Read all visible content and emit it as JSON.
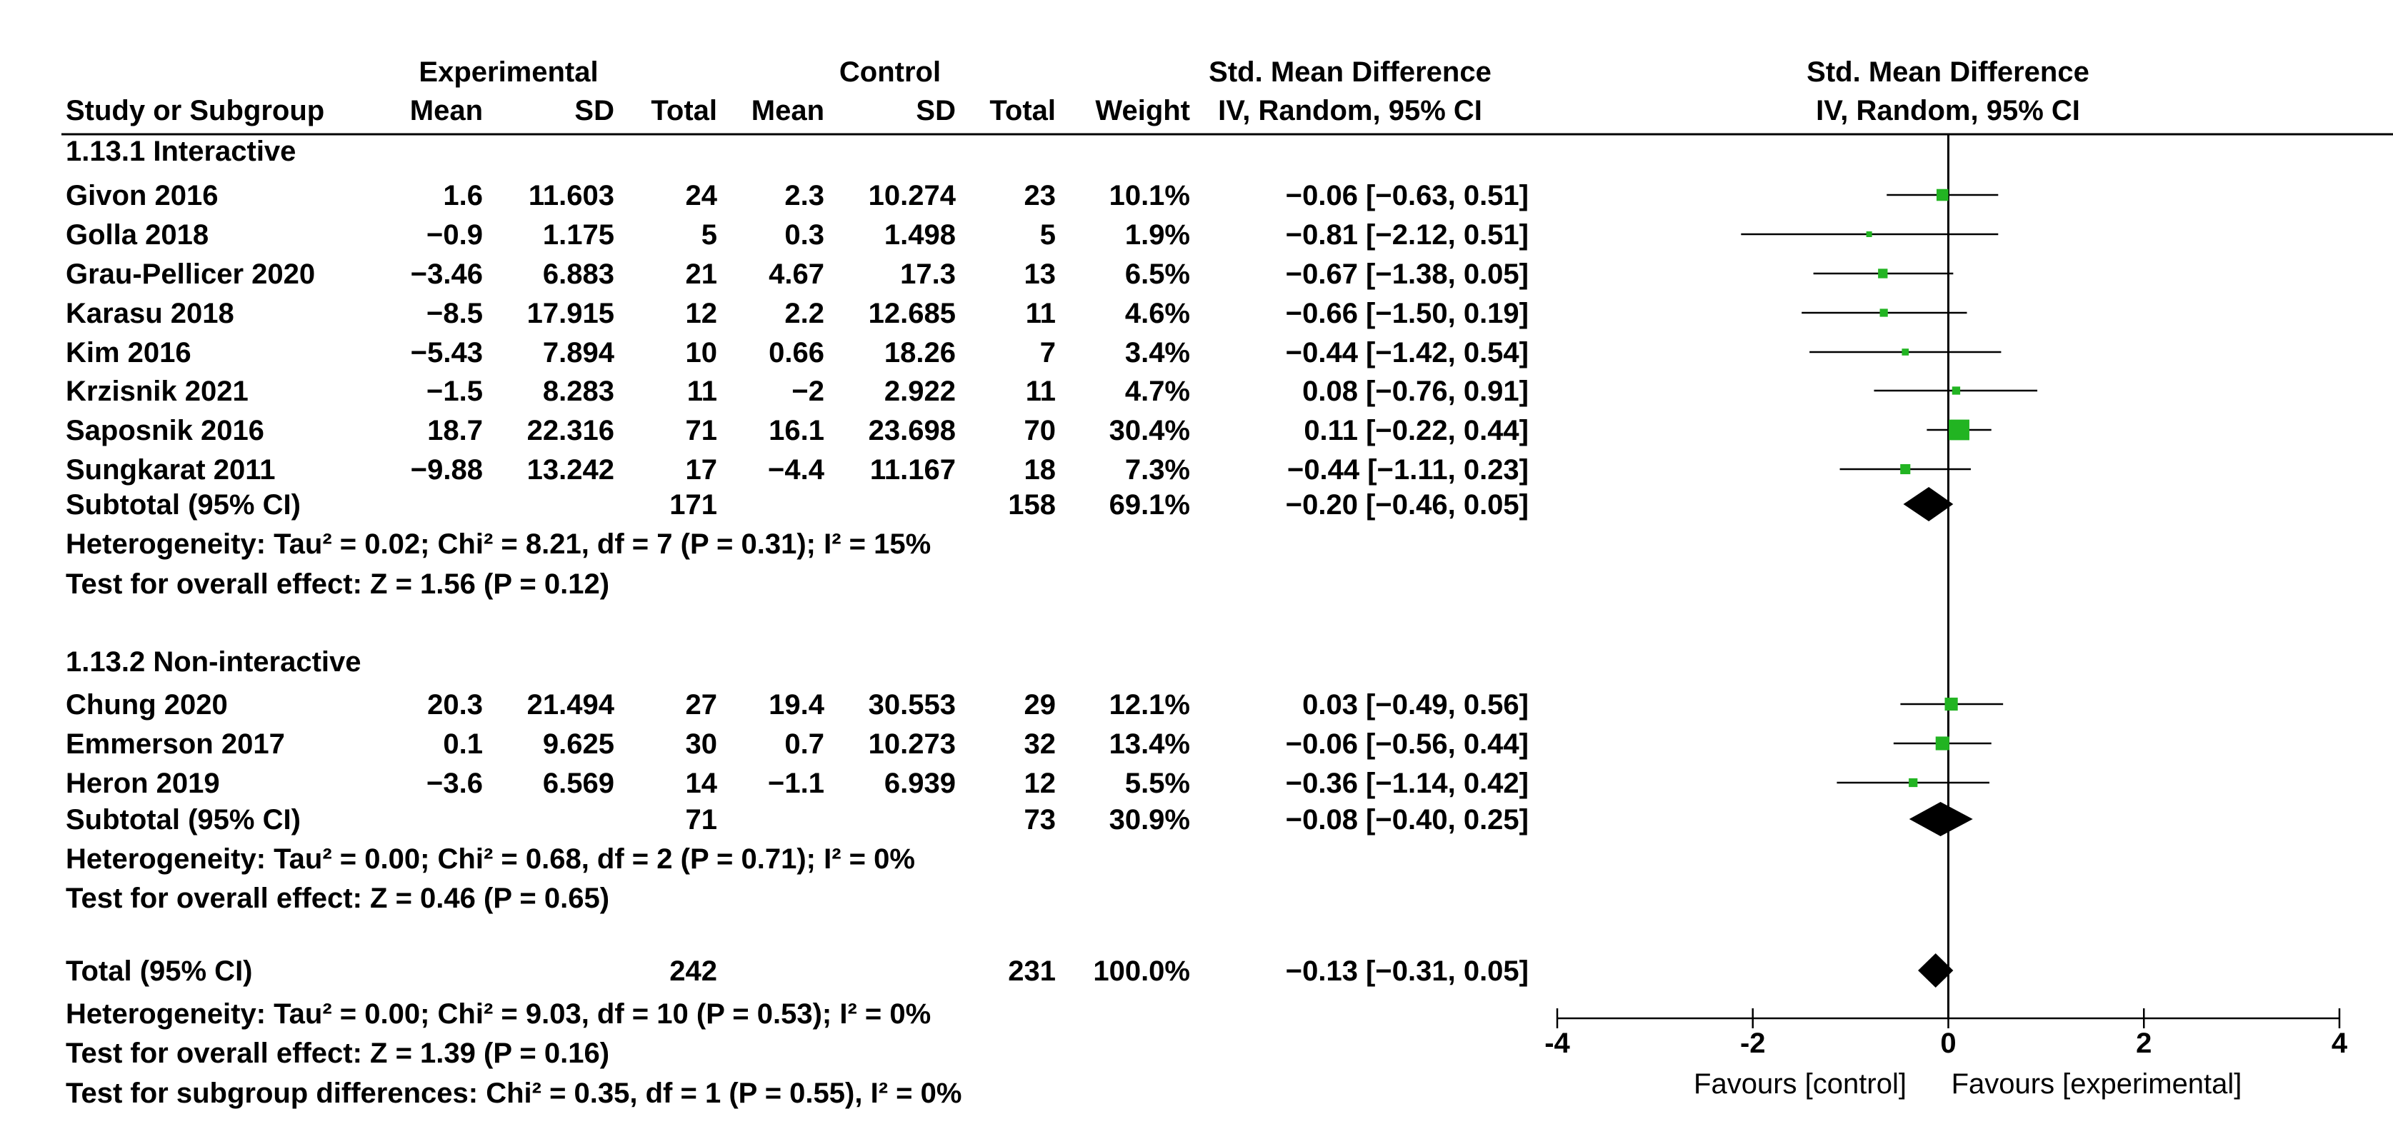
{
  "headers": {
    "experimental": "Experimental",
    "control": "Control",
    "smd_top": "Std. Mean Difference",
    "smd_bottom": "IV, Random, 95% CI",
    "plot_top": "Std. Mean Difference",
    "plot_bottom": "IV, Random, 95% CI",
    "study": "Study or Subgroup",
    "mean": "Mean",
    "sd": "SD",
    "total": "Total",
    "mean2": "Mean",
    "sd2": "SD",
    "total2": "Total",
    "weight": "Weight"
  },
  "subgroups": [
    {
      "title": "1.13.1 Interactive",
      "subtotal": {
        "label": "Subtotal (95% CI)",
        "exp_total": "171",
        "ctl_total": "158",
        "weight": "69.1%",
        "ci": "−0.20 [−0.46, 0.05]"
      },
      "heterogeneity": "Heterogeneity: Tau² = 0.02; Chi² = 8.21, df = 7 (P = 0.31); I² = 15%",
      "overall": "Test for overall effect: Z = 1.56 (P = 0.12)"
    },
    {
      "title": "1.13.2 Non-interactive",
      "subtotal": {
        "label": "Subtotal (95% CI)",
        "exp_total": "71",
        "ctl_total": "73",
        "weight": "30.9%",
        "ci": "−0.08 [−0.40, 0.25]"
      },
      "heterogeneity": "Heterogeneity: Tau² = 0.00; Chi² = 0.68, df = 2 (P = 0.71); I² = 0%",
      "overall": "Test for overall effect: Z = 0.46 (P = 0.65)"
    }
  ],
  "total": {
    "label": "Total (95% CI)",
    "exp_total": "242",
    "ctl_total": "231",
    "weight": "100.0%",
    "ci": "−0.13 [−0.31, 0.05]",
    "heterogeneity": "Heterogeneity: Tau² = 0.00; Chi² = 9.03, df = 10 (P = 0.53); I² = 0%",
    "overall": "Test for overall effect: Z = 1.39 (P = 0.16)",
    "subgroup_diff": "Test for subgroup differences: Chi² = 0.35, df = 1 (P = 0.55), I² = 0%"
  },
  "axis": {
    "favours_left": "Favours [control]",
    "favours_right": "Favours [experimental]"
  },
  "colors": {
    "study_marker": "#22b422",
    "diamond": "#000000",
    "line": "#000000"
  },
  "chart_data": {
    "type": "forest",
    "title": "Std. Mean Difference IV, Random, 95% CI",
    "xlabel": "Favours [control]  Favours [experimental]",
    "xlim": [
      -4,
      4
    ],
    "xticks": [
      -4,
      -2,
      0,
      2,
      4
    ],
    "xtick_labels": [
      "-4",
      "-2",
      "0",
      "2",
      "4"
    ],
    "studies": [
      {
        "group": 0,
        "name": "Givon 2016",
        "exp_mean": "1.6",
        "exp_sd": "11.603",
        "exp_total": "24",
        "ctl_mean": "2.3",
        "ctl_sd": "10.274",
        "ctl_total": "23",
        "weight_label": "10.1%",
        "ci_label": "−0.06 [−0.63, 0.51]",
        "est": -0.06,
        "lo": -0.63,
        "hi": 0.51,
        "weight": 10.1
      },
      {
        "group": 0,
        "name": "Golla 2018",
        "exp_mean": "−0.9",
        "exp_sd": "1.175",
        "exp_total": "5",
        "ctl_mean": "0.3",
        "ctl_sd": "1.498",
        "ctl_total": "5",
        "weight_label": "1.9%",
        "ci_label": "−0.81 [−2.12, 0.51]",
        "est": -0.81,
        "lo": -2.12,
        "hi": 0.51,
        "weight": 1.9
      },
      {
        "group": 0,
        "name": "Grau-Pellicer 2020",
        "exp_mean": "−3.46",
        "exp_sd": "6.883",
        "exp_total": "21",
        "ctl_mean": "4.67",
        "ctl_sd": "17.3",
        "ctl_total": "13",
        "weight_label": "6.5%",
        "ci_label": "−0.67 [−1.38, 0.05]",
        "est": -0.67,
        "lo": -1.38,
        "hi": 0.05,
        "weight": 6.5
      },
      {
        "group": 0,
        "name": "Karasu 2018",
        "exp_mean": "−8.5",
        "exp_sd": "17.915",
        "exp_total": "12",
        "ctl_mean": "2.2",
        "ctl_sd": "12.685",
        "ctl_total": "11",
        "weight_label": "4.6%",
        "ci_label": "−0.66 [−1.50, 0.19]",
        "est": -0.66,
        "lo": -1.5,
        "hi": 0.19,
        "weight": 4.6
      },
      {
        "group": 0,
        "name": "Kim 2016",
        "exp_mean": "−5.43",
        "exp_sd": "7.894",
        "exp_total": "10",
        "ctl_mean": "0.66",
        "ctl_sd": "18.26",
        "ctl_total": "7",
        "weight_label": "3.4%",
        "ci_label": "−0.44 [−1.42, 0.54]",
        "est": -0.44,
        "lo": -1.42,
        "hi": 0.54,
        "weight": 3.4
      },
      {
        "group": 0,
        "name": "Krzisnik 2021",
        "exp_mean": "−1.5",
        "exp_sd": "8.283",
        "exp_total": "11",
        "ctl_mean": "−2",
        "ctl_sd": "2.922",
        "ctl_total": "11",
        "weight_label": "4.7%",
        "ci_label": "0.08 [−0.76, 0.91]",
        "est": 0.08,
        "lo": -0.76,
        "hi": 0.91,
        "weight": 4.7
      },
      {
        "group": 0,
        "name": "Saposnik 2016",
        "exp_mean": "18.7",
        "exp_sd": "22.316",
        "exp_total": "71",
        "ctl_mean": "16.1",
        "ctl_sd": "23.698",
        "ctl_total": "70",
        "weight_label": "30.4%",
        "ci_label": "0.11 [−0.22, 0.44]",
        "est": 0.11,
        "lo": -0.22,
        "hi": 0.44,
        "weight": 30.4
      },
      {
        "group": 0,
        "name": "Sungkarat 2011",
        "exp_mean": "−9.88",
        "exp_sd": "13.242",
        "exp_total": "17",
        "ctl_mean": "−4.4",
        "ctl_sd": "11.167",
        "ctl_total": "18",
        "weight_label": "7.3%",
        "ci_label": "−0.44 [−1.11, 0.23]",
        "est": -0.44,
        "lo": -1.11,
        "hi": 0.23,
        "weight": 7.3
      },
      {
        "group": 1,
        "name": "Chung 2020",
        "exp_mean": "20.3",
        "exp_sd": "21.494",
        "exp_total": "27",
        "ctl_mean": "19.4",
        "ctl_sd": "30.553",
        "ctl_total": "29",
        "weight_label": "12.1%",
        "ci_label": "0.03 [−0.49, 0.56]",
        "est": 0.03,
        "lo": -0.49,
        "hi": 0.56,
        "weight": 12.1
      },
      {
        "group": 1,
        "name": "Emmerson 2017",
        "exp_mean": "0.1",
        "exp_sd": "9.625",
        "exp_total": "30",
        "ctl_mean": "0.7",
        "ctl_sd": "10.273",
        "ctl_total": "32",
        "weight_label": "13.4%",
        "ci_label": "−0.06 [−0.56, 0.44]",
        "est": -0.06,
        "lo": -0.56,
        "hi": 0.44,
        "weight": 13.4
      },
      {
        "group": 1,
        "name": "Heron 2019",
        "exp_mean": "−3.6",
        "exp_sd": "6.569",
        "exp_total": "14",
        "ctl_mean": "−1.1",
        "ctl_sd": "6.939",
        "ctl_total": "12",
        "weight_label": "5.5%",
        "ci_label": "−0.36 [−1.14, 0.42]",
        "est": -0.36,
        "lo": -1.14,
        "hi": 0.42,
        "weight": 5.5
      }
    ],
    "pooled": [
      {
        "name": "Subtotal 1.13.1",
        "est": -0.2,
        "lo": -0.46,
        "hi": 0.05
      },
      {
        "name": "Subtotal 1.13.2",
        "est": -0.08,
        "lo": -0.4,
        "hi": 0.25
      },
      {
        "name": "Total",
        "est": -0.13,
        "lo": -0.31,
        "hi": 0.05
      }
    ]
  }
}
